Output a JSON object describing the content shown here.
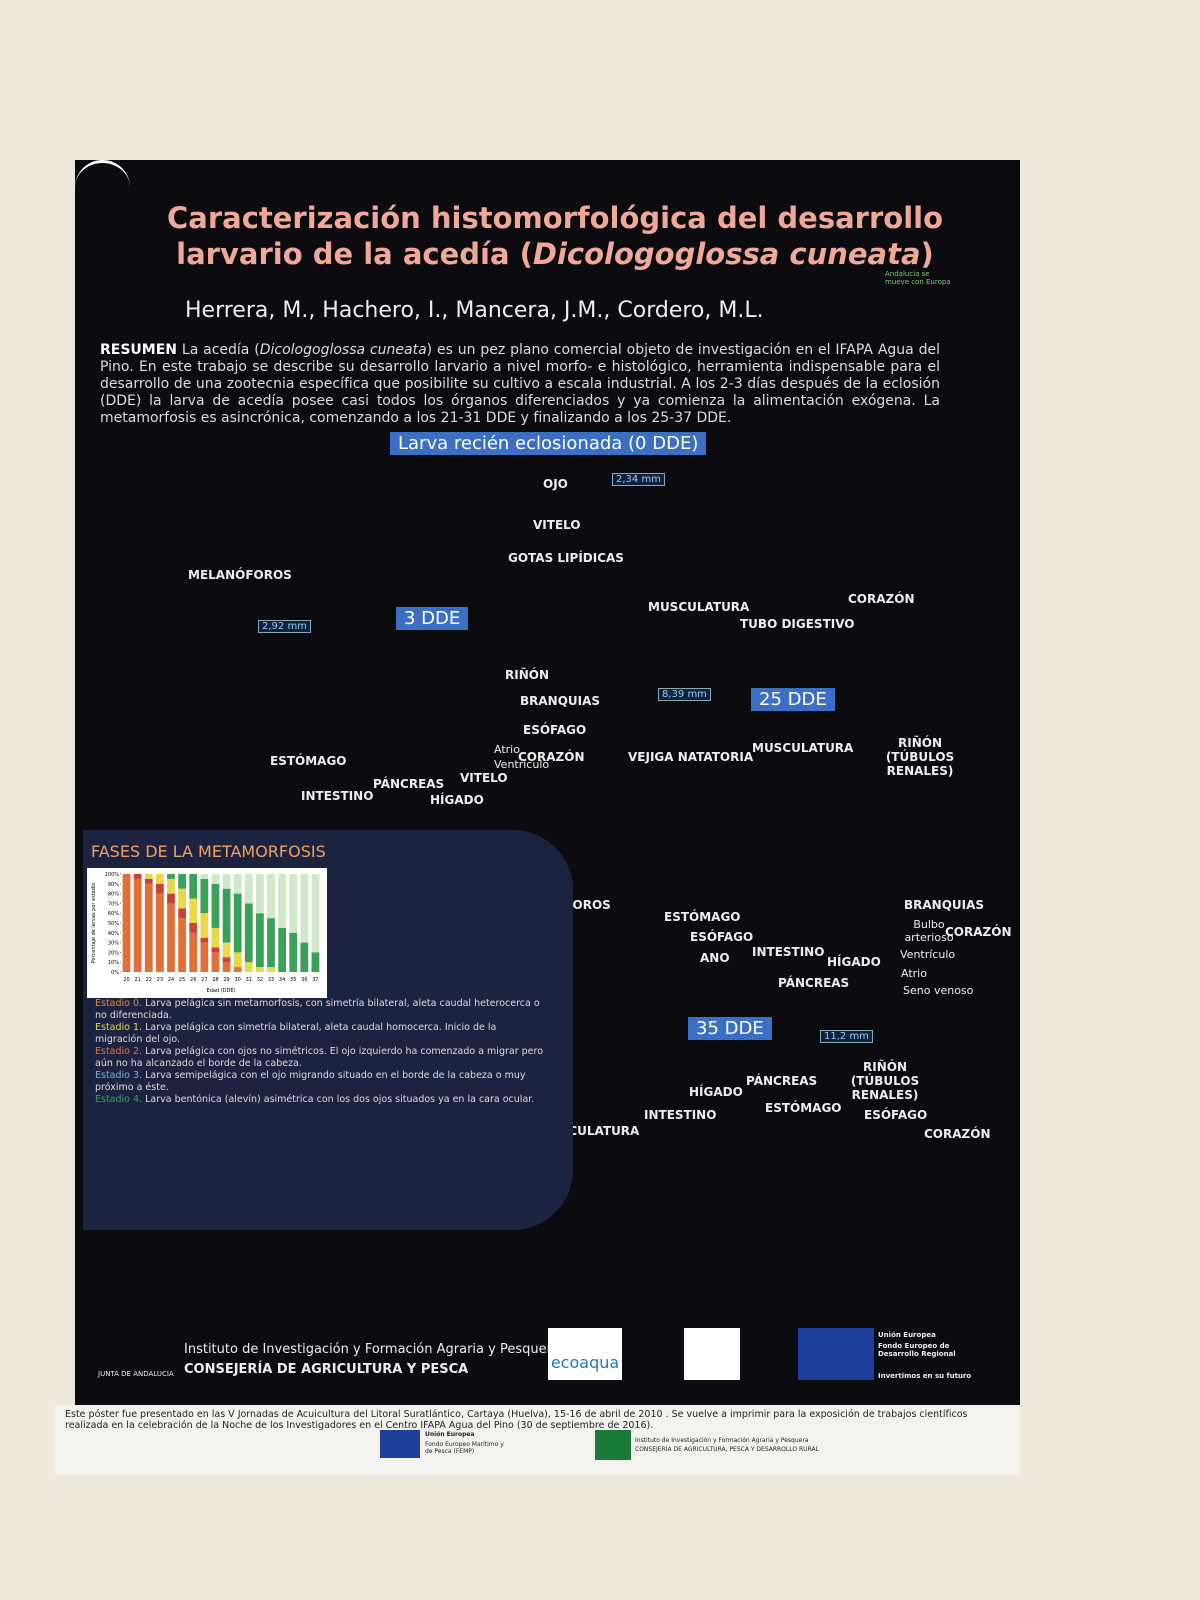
{
  "poster": {
    "title": {
      "line1": "Caracterización histomorfológica del desarrollo",
      "line2_pre": "larvario de la acedía (",
      "line2_italic": "Dicologoglossa cuneata",
      "line2_post": ")"
    },
    "authors": "Herrera, M., Hachero, I., Mancera, J.M., Cordero, M.L.",
    "corner_logo": "Andalucía se mueve con Europa",
    "summary": {
      "label": "RESUMEN",
      "pre": "La acedía (",
      "italic": "Dicologoglossa cuneata",
      "text": ") es un pez plano comercial objeto de investigación en el IFAPA Agua del Pino. En este trabajo se describe su desarrollo larvario a nivel morfo- e histológico, herramienta indispensable para el desarrollo de una zootecnia específica que posibilite su cultivo a escala industrial. A los 2-3 días después de la eclosión (DDE) la larva de acedía posee casi todos los órganos diferenciados y ya comienza la alimentación exógena. La metamorfosis es asincrónica, comenzando a los 21-31 DDE y finalizando a los 25-37 DDE."
    },
    "stages": {
      "s0": "Larva recién eclosionada (0 DDE)",
      "s3": "3 DDE",
      "s25": "25 DDE",
      "s35": "35 DDE"
    },
    "scale_bars": [
      "2,34 mm",
      "2,92 mm",
      "8,39 mm",
      "11,2 mm"
    ],
    "labels_0": [
      "OJO",
      "VITELO",
      "GOTAS LIPÍDICAS",
      "MELANÓFOROS",
      "MUSCULATURA",
      "TUBO DIGESTIVO",
      "CORAZÓN"
    ],
    "labels_3": [
      "RIÑÓN",
      "BRANQUIAS",
      "ESÓFAGO",
      "Atrio",
      "Ventrículo",
      "CORAZÓN",
      "ESTÓMAGO",
      "PÁNCREAS",
      "VITELO",
      "INTESTINO",
      "HÍGADO"
    ],
    "labels_25": [
      "VEJIGA NATATORIA",
      "MUSCULATURA",
      "RIÑÓN (TÚBULOS RENALES)",
      "MELANÓFOROS",
      "ESTÓMAGO",
      "ESÓFAGO",
      "ANO",
      "INTESTINO",
      "HÍGADO",
      "PÁNCREAS",
      "BRANQUIAS",
      "Bulbo arterioso",
      "Ventrículo",
      "Atrio",
      "Seno venoso",
      "CORAZÓN"
    ],
    "labels_35": [
      "HÍGADO",
      "PÁNCREAS",
      "RIÑÓN (TÚBULOS RENALES)",
      "INTESTINO",
      "ESTÓMAGO",
      "ESÓFAGO",
      "MUSCULATURA",
      "CORAZÓN"
    ],
    "metamorphosis": {
      "title": "FASES DE LA METAMORFOSIS",
      "estadios": [
        {
          "label": "Estadio 0.",
          "text": "Larva pelágica sin metamorfosis, con simetría bilateral, aleta caudal heterocerca o no diferenciada."
        },
        {
          "label": "Estadio 1.",
          "text": "Larva pelágica con simetría bilateral, aleta caudal homocerca. Inicio de la migración del ojo."
        },
        {
          "label": "Estadio 2.",
          "text": "Larva pelágica con ojos no simétricos. El ojo izquierdo ha comenzado a migrar pero aún no ha alcanzado el borde de la cabeza."
        },
        {
          "label": "Estadio 3.",
          "text": "Larva semipelágica con el ojo migrando situado en el borde de la cabeza o muy próximo a éste."
        },
        {
          "label": "Estadio 4.",
          "text": "Larva bentónica (alevín) asimétrica con los dos ojos situados ya en la cara ocular."
        }
      ]
    },
    "footer_logos": {
      "junta": "JUNTA DE ANDALUCIA",
      "institute1": "Instituto de Investigación y Formación Agraria y Pesquera",
      "institute2": "CONSEJERÍA DE AGRICULTURA Y PESCA",
      "ecoaqua": "ecoaqua",
      "eu1": "Unión Europea",
      "eu2": "Fondo Europeo de Desarrollo Regional",
      "eu3": "Invertimos en su futuro"
    },
    "note": "Este póster fue presentado en las V Jornadas de Acuicultura del Litoral Suratlántico, Cartaya (Huelva), 15-16 de abril de 2010 .  Se vuelve a imprimir para la exposición de trabajos científicos realizada en la celebración de la Noche de los Investigadores  en el Centro IFAPA Agua del Pino (30 de septiembre de 2016).",
    "note_logos": {
      "eu": "Unión Europea",
      "femp": "Fondo Europeo Marítimo y de Pesca (FEMP)",
      "ifapa1": "Instituto de Investigación y Formación Agraria y Pesquera",
      "ifapa2": "CONSEJERÍA DE AGRICULTURA, PESCA Y DESARROLLO RURAL"
    }
  },
  "chart_data": {
    "type": "stacked-bar",
    "x_label": "Edad (DDE)",
    "y_label": "Porcentaje de larvas por estadio",
    "categories": [
      "20",
      "21",
      "22",
      "23",
      "24",
      "25",
      "26",
      "27",
      "28",
      "29",
      "30",
      "31",
      "32",
      "33",
      "34",
      "35",
      "36",
      "37"
    ],
    "series": [
      {
        "color": "#e0703a",
        "values": [
          100,
          95,
          90,
          80,
          70,
          55,
          40,
          30,
          20,
          10,
          5,
          0,
          0,
          0,
          0,
          0,
          0,
          0
        ]
      },
      {
        "color": "#c8423a",
        "values": [
          0,
          5,
          5,
          10,
          10,
          10,
          10,
          5,
          5,
          5,
          0,
          0,
          0,
          0,
          0,
          0,
          0,
          0
        ]
      },
      {
        "color": "#e8d84a",
        "values": [
          0,
          0,
          5,
          10,
          15,
          20,
          25,
          25,
          20,
          15,
          15,
          10,
          5,
          5,
          0,
          0,
          0,
          0
        ]
      },
      {
        "color": "#3aa05a",
        "values": [
          0,
          0,
          0,
          0,
          5,
          15,
          25,
          35,
          45,
          55,
          60,
          60,
          55,
          50,
          45,
          40,
          30,
          20
        ]
      },
      {
        "color": "#cfe8c8",
        "values": [
          0,
          0,
          0,
          0,
          0,
          0,
          0,
          5,
          10,
          15,
          20,
          30,
          40,
          45,
          55,
          60,
          70,
          80
        ]
      }
    ],
    "ylim": [
      0,
      100
    ],
    "yticks": [
      {
        "value": 0,
        "label": "0%"
      },
      {
        "value": 10,
        "label": "10%"
      },
      {
        "value": 20,
        "label": "20%"
      },
      {
        "value": 30,
        "label": "30%"
      },
      {
        "value": 40,
        "label": "40%"
      },
      {
        "value": 50,
        "label": "50%"
      },
      {
        "value": 60,
        "label": "60%"
      },
      {
        "value": 70,
        "label": "70%"
      },
      {
        "value": 80,
        "label": "80%"
      },
      {
        "value": 90,
        "label": "90%"
      },
      {
        "value": 100,
        "label": "100%"
      }
    ]
  }
}
